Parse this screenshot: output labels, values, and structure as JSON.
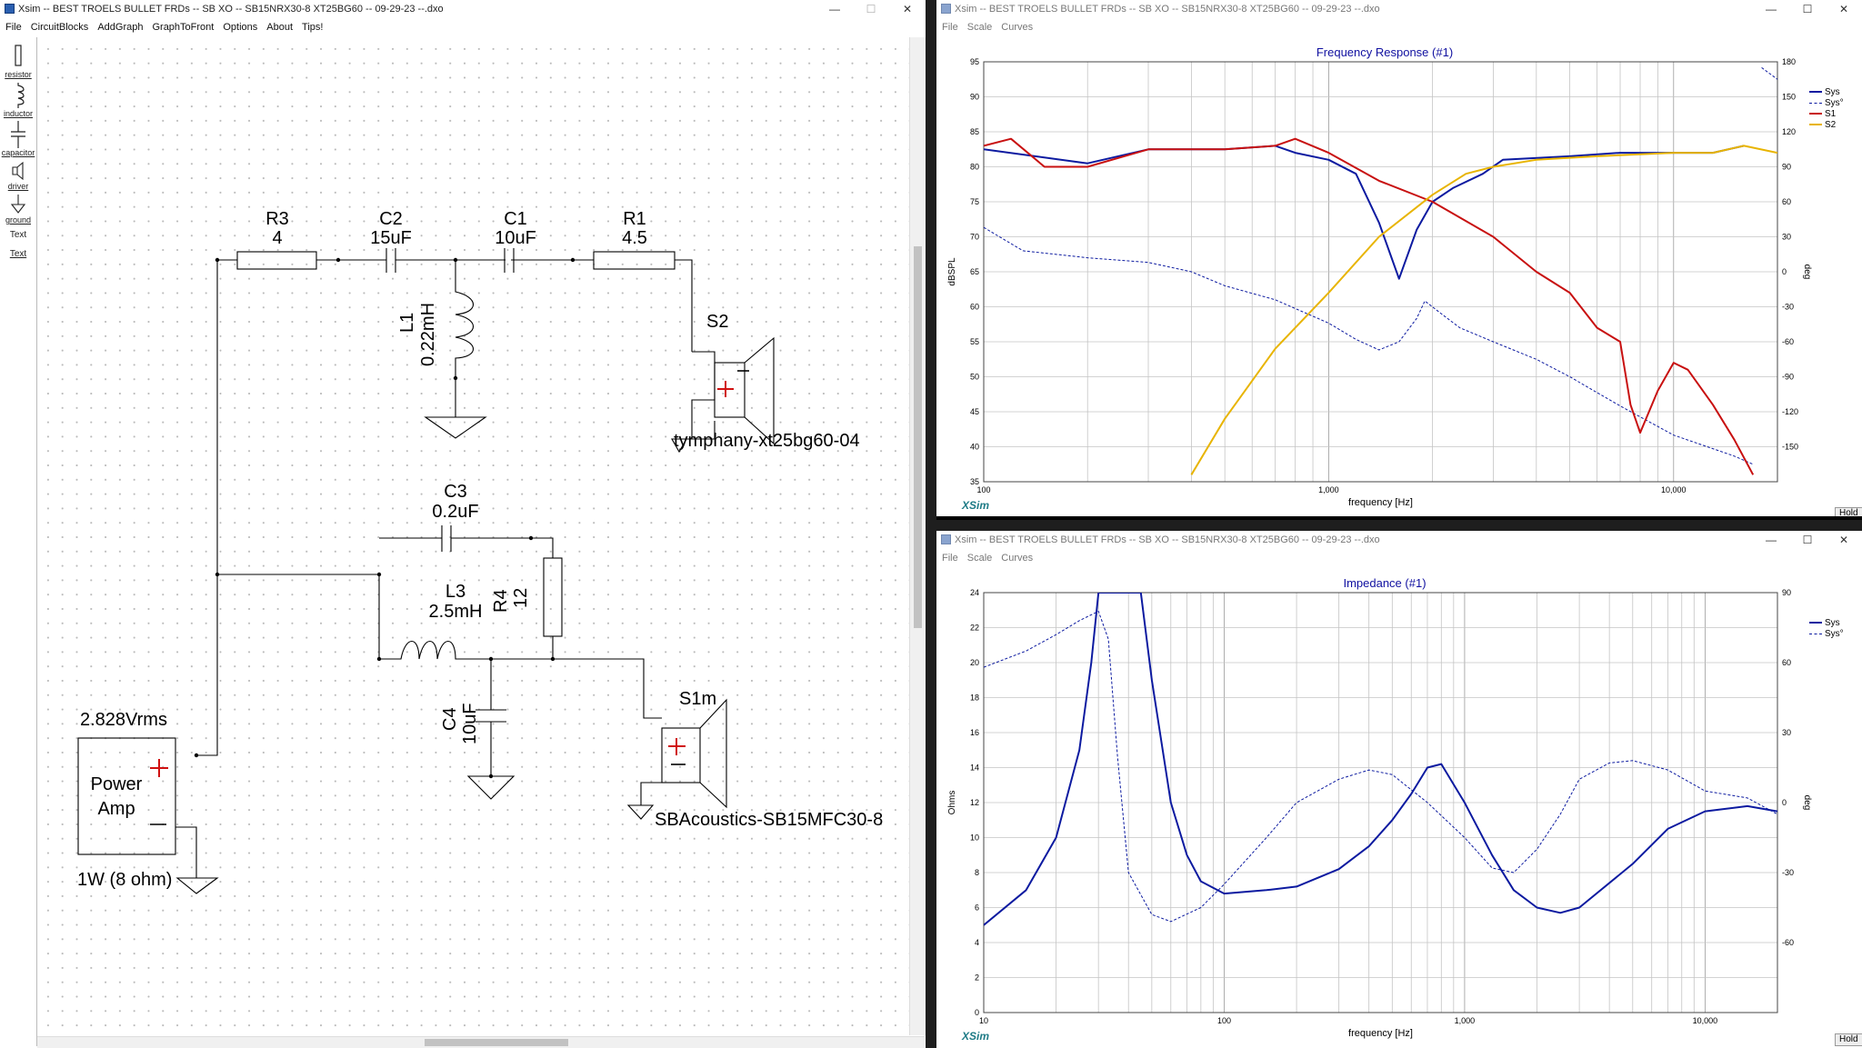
{
  "main_window": {
    "title": "Xsim -- BEST TROELS BULLET FRDs -- SB XO -- SB15NRX30-8 XT25BG60 -- 09-29-23 --.dxo",
    "menu": [
      "File",
      "CircuitBlocks",
      "AddGraph",
      "GraphToFront",
      "Options",
      "About",
      "Tips!"
    ],
    "controls": {
      "minimize": "—",
      "maximize": "☐",
      "close": "✕"
    }
  },
  "tools": [
    {
      "icon": "resistor-icon",
      "label": "resistor"
    },
    {
      "icon": "inductor-icon",
      "label": "inductor"
    },
    {
      "icon": "capacitor-icon",
      "label": "capacitor"
    },
    {
      "icon": "driver-icon",
      "label": "driver"
    },
    {
      "icon": "ground-icon",
      "label": "ground"
    },
    {
      "icon": "text-tool",
      "label": "Text"
    },
    {
      "icon": "text-tool-2",
      "label": "Text"
    }
  ],
  "schematic": {
    "R3": {
      "name": "R3",
      "value": "4"
    },
    "C2": {
      "name": "C2",
      "value": "15uF"
    },
    "C1": {
      "name": "C1",
      "value": "10uF"
    },
    "R1": {
      "name": "R1",
      "value": "4.5"
    },
    "L1": {
      "name": "L1",
      "value": "0.22mH"
    },
    "S2": {
      "name": "S2",
      "model": "tymphany-xt25bg60-04"
    },
    "C3": {
      "name": "C3",
      "value": "0.2uF"
    },
    "L3": {
      "name": "L3",
      "value": "2.5mH"
    },
    "R4": {
      "name": "R4",
      "value": "12"
    },
    "C4": {
      "name": "C4",
      "value": "10uF"
    },
    "S1m": {
      "name": "S1m",
      "model": "SBAcoustics-SB15MFC30-8"
    },
    "amp": {
      "voltage": "2.828Vrms",
      "line1": "Power",
      "line2": "Amp",
      "power": "1W (8 ohm)"
    }
  },
  "freq_window": {
    "title": "Xsim -- BEST TROELS BULLET FRDs -- SB XO -- SB15NRX30-8 XT25BG60 -- 09-29-23 --.dxo",
    "menu": [
      "File",
      "Scale",
      "Curves"
    ],
    "chart_title": "Frequency Response (#1)",
    "brand": "XSim",
    "hold": "Hold"
  },
  "imp_window": {
    "title": "Xsim -- BEST TROELS BULLET FRDs -- SB XO -- SB15NRX30-8 XT25BG60 -- 09-29-23 --.dxo",
    "menu": [
      "File",
      "Scale",
      "Curves"
    ],
    "chart_title": "Impedance (#1)",
    "brand": "XSim",
    "hold": "Hold"
  },
  "chart_data": [
    {
      "type": "line",
      "title": "Frequency Response (#1)",
      "xlabel": "frequency [Hz]",
      "ylabel": "dBSPL",
      "y2label": "deg",
      "xscale": "log",
      "xlim": [
        100,
        20000
      ],
      "ylim": [
        35,
        95
      ],
      "y2lim": [
        -180,
        180
      ],
      "x_tick_labels": [
        {
          "x": 100,
          "label": "100"
        },
        {
          "x": 1000,
          "label": "1,000"
        },
        {
          "x": 10000,
          "label": "10,000"
        }
      ],
      "y_ticks": [
        35,
        40,
        45,
        50,
        55,
        60,
        65,
        70,
        75,
        80,
        85,
        90,
        95
      ],
      "y2_ticks": [
        -150,
        -120,
        -90,
        -60,
        -30,
        0,
        30,
        60,
        90,
        120,
        150,
        180
      ],
      "grid": true,
      "legend_position": "top-right",
      "series": [
        {
          "name": "Sys",
          "color": "#0c1aa0",
          "style": "solid",
          "axis": "y",
          "points": [
            [
              100,
              82.5
            ],
            [
              200,
              80.5
            ],
            [
              300,
              82.5
            ],
            [
              500,
              82.5
            ],
            [
              700,
              83
            ],
            [
              800,
              82
            ],
            [
              1000,
              81
            ],
            [
              1200,
              79
            ],
            [
              1400,
              72
            ],
            [
              1600,
              64
            ],
            [
              1800,
              71
            ],
            [
              2000,
              75
            ],
            [
              2300,
              77
            ],
            [
              2800,
              79
            ],
            [
              3200,
              81
            ],
            [
              5000,
              81.5
            ],
            [
              7000,
              82
            ],
            [
              10000,
              82
            ],
            [
              13000,
              82
            ],
            [
              16000,
              83
            ]
          ]
        },
        {
          "name": "Sys°",
          "color": "#0c1aa0",
          "style": "dashed",
          "axis": "y2",
          "points": [
            [
              100,
              38
            ],
            [
              130,
              18
            ],
            [
              200,
              12
            ],
            [
              300,
              8
            ],
            [
              400,
              0
            ],
            [
              500,
              -12
            ],
            [
              700,
              -24
            ],
            [
              1000,
              -44
            ],
            [
              1200,
              -58
            ],
            [
              1400,
              -67
            ],
            [
              1600,
              -60
            ],
            [
              1800,
              -40
            ],
            [
              1900,
              -25
            ],
            [
              2100,
              -35
            ],
            [
              2400,
              -48
            ],
            [
              3000,
              -60
            ],
            [
              4000,
              -75
            ],
            [
              5000,
              -90
            ],
            [
              7000,
              -115
            ],
            [
              10000,
              -140
            ],
            [
              15000,
              -158
            ],
            [
              17000,
              -165
            ],
            [
              18000,
              175
            ],
            [
              20000,
              165
            ]
          ]
        },
        {
          "name": "S1",
          "color": "#c81010",
          "style": "solid",
          "axis": "y",
          "points": [
            [
              100,
              83
            ],
            [
              120,
              84
            ],
            [
              150,
              80
            ],
            [
              200,
              80
            ],
            [
              300,
              82.5
            ],
            [
              500,
              82.5
            ],
            [
              700,
              83
            ],
            [
              800,
              84
            ],
            [
              1000,
              82
            ],
            [
              1400,
              78
            ],
            [
              2000,
              75
            ],
            [
              3000,
              70
            ],
            [
              4000,
              65
            ],
            [
              5000,
              62
            ],
            [
              6000,
              57
            ],
            [
              7000,
              55
            ],
            [
              7500,
              46
            ],
            [
              8000,
              42
            ],
            [
              9000,
              48
            ],
            [
              10000,
              52
            ],
            [
              11000,
              51
            ],
            [
              13000,
              46
            ],
            [
              15000,
              41
            ],
            [
              17000,
              36
            ]
          ]
        },
        {
          "name": "S2",
          "color": "#e8b400",
          "style": "solid",
          "axis": "y",
          "points": [
            [
              400,
              36
            ],
            [
              500,
              44
            ],
            [
              700,
              54
            ],
            [
              1000,
              62
            ],
            [
              1400,
              70
            ],
            [
              2000,
              76
            ],
            [
              2500,
              79
            ],
            [
              3000,
              80
            ],
            [
              4000,
              81
            ],
            [
              6000,
              81.5
            ],
            [
              10000,
              82
            ],
            [
              13000,
              82
            ],
            [
              16000,
              83
            ],
            [
              20000,
              82
            ]
          ]
        }
      ]
    },
    {
      "type": "line",
      "title": "Impedance (#1)",
      "xlabel": "frequency [Hz]",
      "ylabel": "Ohms",
      "y2label": "deg",
      "xscale": "log",
      "xlim": [
        10,
        20000
      ],
      "ylim": [
        0,
        24
      ],
      "y2lim": [
        -90,
        90
      ],
      "x_tick_labels": [
        {
          "x": 10,
          "label": "10"
        },
        {
          "x": 100,
          "label": "100"
        },
        {
          "x": 1000,
          "label": "1,000"
        },
        {
          "x": 10000,
          "label": "10,000"
        }
      ],
      "y_ticks": [
        0,
        2,
        4,
        6,
        8,
        10,
        12,
        14,
        16,
        18,
        20,
        22,
        24
      ],
      "y2_ticks": [
        -60,
        -30,
        0,
        30,
        60,
        90
      ],
      "grid": true,
      "legend_position": "top-right",
      "series": [
        {
          "name": "Sys",
          "color": "#0c1aa0",
          "style": "solid",
          "axis": "y",
          "points": [
            [
              10,
              5
            ],
            [
              15,
              7
            ],
            [
              20,
              10
            ],
            [
              25,
              15
            ],
            [
              28,
              20
            ],
            [
              30,
              24
            ],
            [
              45,
              24
            ],
            [
              50,
              19
            ],
            [
              60,
              12
            ],
            [
              70,
              9
            ],
            [
              80,
              7.5
            ],
            [
              100,
              6.8
            ],
            [
              150,
              7
            ],
            [
              200,
              7.2
            ],
            [
              300,
              8.2
            ],
            [
              400,
              9.5
            ],
            [
              500,
              11
            ],
            [
              600,
              12.5
            ],
            [
              700,
              14
            ],
            [
              800,
              14.2
            ],
            [
              1000,
              12
            ],
            [
              1300,
              9
            ],
            [
              1600,
              7
            ],
            [
              2000,
              6
            ],
            [
              2500,
              5.7
            ],
            [
              3000,
              6
            ],
            [
              5000,
              8.5
            ],
            [
              7000,
              10.5
            ],
            [
              10000,
              11.5
            ],
            [
              15000,
              11.8
            ],
            [
              20000,
              11.5
            ]
          ]
        },
        {
          "name": "Sys°",
          "color": "#0c1aa0",
          "style": "dashed",
          "axis": "y2",
          "points": [
            [
              10,
              58
            ],
            [
              15,
              65
            ],
            [
              20,
              72
            ],
            [
              25,
              78
            ],
            [
              30,
              82
            ],
            [
              33,
              70
            ],
            [
              36,
              20
            ],
            [
              40,
              -30
            ],
            [
              50,
              -48
            ],
            [
              60,
              -51
            ],
            [
              80,
              -45
            ],
            [
              100,
              -35
            ],
            [
              150,
              -15
            ],
            [
              200,
              0
            ],
            [
              300,
              10
            ],
            [
              400,
              14
            ],
            [
              500,
              12
            ],
            [
              700,
              0
            ],
            [
              1000,
              -15
            ],
            [
              1300,
              -28
            ],
            [
              1600,
              -30
            ],
            [
              2000,
              -20
            ],
            [
              2500,
              -5
            ],
            [
              3000,
              10
            ],
            [
              4000,
              17
            ],
            [
              5000,
              18
            ],
            [
              7000,
              14
            ],
            [
              10000,
              5
            ],
            [
              15000,
              2
            ],
            [
              20000,
              -5
            ]
          ]
        }
      ]
    }
  ]
}
